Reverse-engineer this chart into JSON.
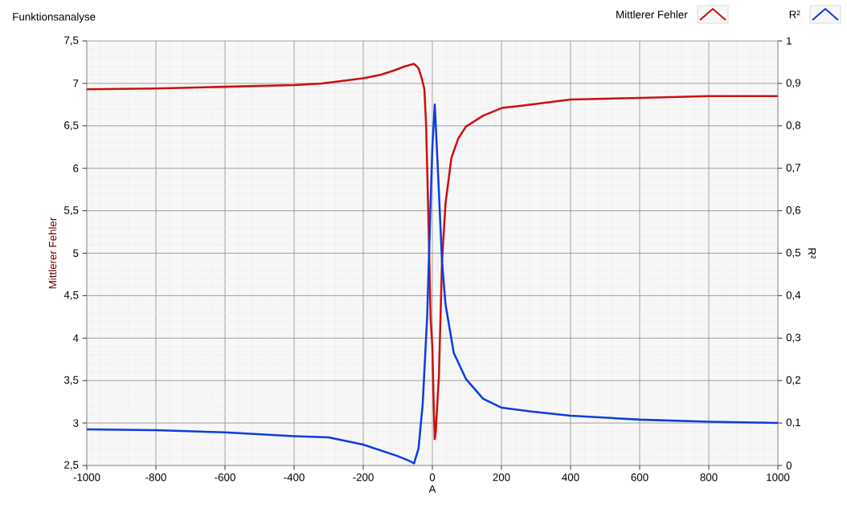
{
  "chart_data": {
    "type": "line",
    "title": "Funktionsanalyse",
    "xlabel": "A",
    "ylabel": "Mittlerer Fehler",
    "y2label": "R²",
    "series": [
      {
        "name": "Mittlerer Fehler",
        "color": "#cc1010",
        "axis": "y",
        "x": [
          -1000,
          -800,
          -600,
          -400,
          -319,
          -200,
          -150,
          -112,
          -80,
          -53,
          -40,
          -30,
          -23,
          -18,
          -12,
          -5,
          0,
          4,
          7,
          10,
          14,
          19,
          28,
          38,
          55,
          75,
          97,
          147,
          201,
          263,
          400,
          600,
          800,
          1000
        ],
        "values": [
          6.93,
          6.94,
          6.96,
          6.98,
          7.0,
          7.06,
          7.1,
          7.15,
          7.2,
          7.23,
          7.18,
          7.05,
          6.93,
          6.5,
          5.52,
          4.23,
          3.9,
          3.2,
          2.81,
          2.9,
          3.2,
          3.55,
          4.9,
          5.58,
          6.12,
          6.35,
          6.49,
          6.62,
          6.71,
          6.74,
          6.81,
          6.83,
          6.85,
          6.85
        ]
      },
      {
        "name": "R²",
        "color": "#0a3ee0",
        "axis": "y2",
        "x": [
          -1000,
          -800,
          -600,
          -400,
          -300,
          -200,
          -100,
          -70,
          -53,
          -40,
          -28,
          -15,
          -5,
          0,
          7,
          17,
          28,
          38,
          62,
          97,
          147,
          201,
          286,
          400,
          600,
          800,
          1000
        ],
        "values": [
          0.085,
          0.083,
          0.078,
          0.069,
          0.066,
          0.049,
          0.022,
          0.012,
          0.005,
          0.04,
          0.144,
          0.35,
          0.62,
          0.75,
          0.85,
          0.68,
          0.48,
          0.38,
          0.265,
          0.204,
          0.157,
          0.136,
          0.127,
          0.117,
          0.108,
          0.103,
          0.1
        ]
      }
    ],
    "xlim": [
      -1000,
      1000
    ],
    "xticks": [
      -1000,
      -800,
      -600,
      -400,
      -200,
      0,
      200,
      400,
      600,
      800,
      1000
    ],
    "ylim": [
      2.5,
      7.5
    ],
    "yticks": [
      {
        "value": 2.5,
        "label": "2,5"
      },
      3,
      {
        "value": 3.5,
        "label": "3,5"
      },
      4,
      {
        "value": 4.5,
        "label": "4,5"
      },
      5,
      {
        "value": 5.5,
        "label": "5,5"
      },
      6,
      {
        "value": 6.5,
        "label": "6,5"
      },
      7,
      {
        "value": 7.5,
        "label": "7,5"
      }
    ],
    "y2lim": [
      0,
      1
    ],
    "y2ticks": [
      0,
      {
        "value": 0.1,
        "label": "0,1"
      },
      {
        "value": 0.2,
        "label": "0,2"
      },
      {
        "value": 0.3,
        "label": "0,3"
      },
      {
        "value": 0.4,
        "label": "0,4"
      },
      {
        "value": 0.5,
        "label": "0,5"
      },
      {
        "value": 0.6,
        "label": "0,6"
      },
      {
        "value": 0.7,
        "label": "0,7"
      },
      {
        "value": 0.8,
        "label": "0,8"
      },
      {
        "value": 0.9,
        "label": "0,9"
      },
      1
    ],
    "grid": true,
    "legend": "top right"
  }
}
